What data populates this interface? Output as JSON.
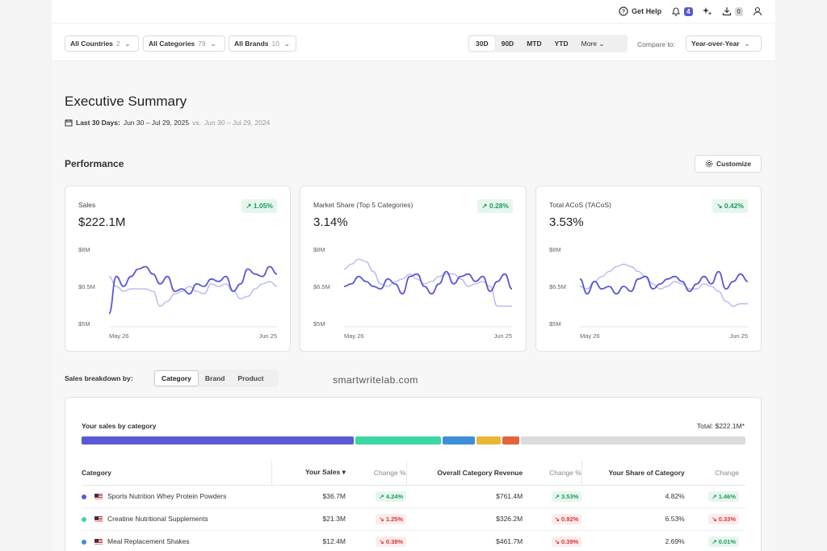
{
  "topbar": {
    "help": "Get Help",
    "notif_count": "4",
    "download_count": "0"
  },
  "filters": {
    "countries": {
      "label": "All Countries",
      "count": "2"
    },
    "categories": {
      "label": "All Categories",
      "count": "79"
    },
    "brands": {
      "label": "All Brands",
      "count": "10"
    },
    "periods": [
      "30D",
      "90D",
      "MTD",
      "YTD"
    ],
    "more": "More",
    "compare_label": "Compare to:",
    "compare_value": "Year-over-Year"
  },
  "header": {
    "title": "Executive Summary",
    "range_label": "Last 30 Days:",
    "range": "Jun 30 – Jul 29, 2025",
    "vs": "vs.",
    "compare_range": "Jun 30 – Jul 29, 2024"
  },
  "performance": {
    "title": "Performance",
    "customize": "Customize",
    "cards": [
      {
        "name": "Sales",
        "value": "$222.1M",
        "change": "1.05%",
        "direction": "up"
      },
      {
        "name": "Market Share (Top 5 Categories)",
        "value": "3.14%",
        "change": "0.28%",
        "direction": "up"
      },
      {
        "name": "Total ACoS (TACoS)",
        "value": "3.53%",
        "change": "0.42%",
        "direction": "down"
      }
    ]
  },
  "chart_data": [
    {
      "type": "line",
      "x_tick_labels": [
        "May 26",
        "Jun 25"
      ],
      "y_tick_labels": [
        "$8M",
        "$6.5M",
        "$5M"
      ],
      "ylim": [
        5,
        8
      ],
      "series": [
        {
          "values": [
            5.4,
            6.9,
            6.5,
            6.9,
            7.2,
            7.3,
            7.0,
            6.6,
            6.9,
            6.3,
            6.4,
            6.2,
            6.6,
            6.5,
            6.8,
            6.7,
            6.9,
            6.3,
            6.6,
            7.2,
            7.0,
            6.9,
            7.3,
            7.0
          ],
          "color": "#5a59d6"
        },
        {
          "values": [
            6.9,
            6.5,
            6.3,
            6.4,
            6.4,
            6.4,
            6.3,
            5.7,
            5.9,
            6.2,
            6.3,
            6.5,
            6.3,
            6.2,
            6.6,
            6.5,
            6.6,
            6.3,
            6.0,
            6.1,
            6.4,
            6.6,
            6.7,
            6.5
          ],
          "color": "#b9b8ee"
        }
      ]
    },
    {
      "type": "line",
      "x_tick_labels": [
        "May 26",
        "Jun 25"
      ],
      "y_tick_labels": [
        "$8M",
        "$6.5M",
        "$5M"
      ],
      "ylim": [
        5,
        8
      ],
      "series": [
        {
          "values": [
            6.5,
            6.6,
            6.9,
            6.7,
            6.5,
            6.4,
            6.8,
            6.6,
            6.2,
            6.9,
            7.0,
            6.5,
            6.2,
            6.6,
            7.1,
            6.6,
            6.9,
            7.0,
            6.7,
            6.9,
            6.3,
            6.7,
            7.0,
            6.4
          ],
          "color": "#5a59d6"
        },
        {
          "values": [
            7.2,
            7.4,
            7.6,
            7.5,
            7.1,
            6.6,
            6.5,
            6.7,
            6.8,
            7.0,
            6.8,
            6.6,
            6.7,
            6.9,
            7.0,
            7.0,
            6.8,
            6.5,
            6.6,
            6.7,
            6.5,
            5.7,
            5.7,
            5.7
          ],
          "color": "#b9b8ee"
        }
      ]
    },
    {
      "type": "line",
      "x_tick_labels": [
        "May 26",
        "Jun 25"
      ],
      "y_tick_labels": [
        "$8M",
        "$6.5M",
        "$5M"
      ],
      "ylim": [
        5,
        8
      ],
      "series": [
        {
          "values": [
            6.8,
            6.2,
            6.7,
            6.4,
            6.5,
            6.2,
            6.5,
            6.3,
            6.8,
            6.9,
            6.4,
            6.6,
            6.8,
            6.9,
            6.7,
            6.3,
            6.6,
            6.9,
            6.6,
            7.1,
            6.4,
            6.7,
            7.0,
            6.7
          ],
          "color": "#5a59d6"
        },
        {
          "values": [
            6.5,
            6.4,
            6.7,
            6.9,
            7.1,
            7.3,
            7.4,
            7.3,
            7.1,
            6.9,
            6.6,
            6.4,
            6.5,
            6.7,
            6.6,
            6.4,
            6.4,
            6.6,
            6.5,
            6.3,
            5.9,
            5.7,
            5.8,
            5.8
          ],
          "color": "#b9b8ee"
        }
      ]
    }
  ],
  "breakdown": {
    "label": "Sales breakdown by:",
    "tabs": [
      "Category",
      "Brand",
      "Product"
    ],
    "active": "Category"
  },
  "watermark": "smartwritelab.com",
  "category_table": {
    "title": "Your sales by category",
    "total": "Total: $222.1M*",
    "bar_segments": [
      {
        "color": "#5a59d6",
        "share": 0.415
      },
      {
        "color": "#3dd6a4",
        "share": 0.13
      },
      {
        "color": "#3f8fd6",
        "share": 0.05
      },
      {
        "color": "#e9b733",
        "share": 0.037
      },
      {
        "color": "#e4643b",
        "share": 0.026
      },
      {
        "color": "#dcdcdc",
        "share": 0.342
      }
    ],
    "columns": [
      "Category",
      "Your Sales",
      "Change %",
      "Overall Category Revenue",
      "Change %",
      "Your Share of Category",
      "Change"
    ],
    "rows": [
      {
        "color": "#5a59d6",
        "name": "Sports Nutrition Whey Protein Powders",
        "sales": "$36.7M",
        "sales_chg": "4.24%",
        "sales_dir": "up",
        "rev": "$761.4M",
        "rev_chg": "3.53%",
        "rev_dir": "up",
        "share": "4.82%",
        "share_chg": "1.46%",
        "share_dir": "up"
      },
      {
        "color": "#3dd6a4",
        "name": "Creatine Nutritional Supplements",
        "sales": "$21.3M",
        "sales_chg": "1.25%",
        "sales_dir": "down",
        "rev": "$326.2M",
        "rev_chg": "0.92%",
        "rev_dir": "down",
        "share": "6.53%",
        "share_chg": "0.33%",
        "share_dir": "down"
      },
      {
        "color": "#3f8fd6",
        "name": "Meal Replacement Shakes",
        "sales": "$12.4M",
        "sales_chg": "0.38%",
        "sales_dir": "down",
        "rev": "$461.7M",
        "rev_chg": "0.39%",
        "rev_dir": "down",
        "share": "2.69%",
        "share_chg": "0.01%",
        "share_dir": "up"
      }
    ]
  }
}
